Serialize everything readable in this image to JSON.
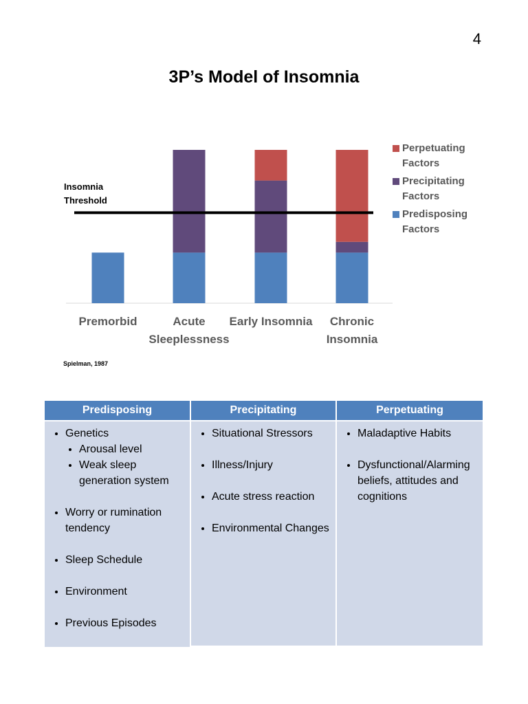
{
  "page_number": "4",
  "chart_data": {
    "type": "bar",
    "stacked": true,
    "title": "3P’s Model of Insomnia",
    "categories": [
      "Premorbid",
      "Acute Sleeplessness",
      "Early Insomnia",
      "Chronic Insomnia"
    ],
    "series": [
      {
        "name": "Predisposing Factors",
        "color": "#4f81bd",
        "values": [
          3.3,
          3.3,
          3.3,
          3.3
        ]
      },
      {
        "name": "Precipitating Factors",
        "color": "#604a7b",
        "values": [
          0,
          6.7,
          4.7,
          0.7
        ]
      },
      {
        "name": "Perpetuating Factors",
        "color": "#c0504d",
        "values": [
          0,
          0,
          2.0,
          6.0
        ]
      }
    ],
    "ylim": [
      0,
      10
    ],
    "threshold": {
      "label": "Insomnia Threshold",
      "value": 5.9
    },
    "legend": "right",
    "source": "Spielman, 1987"
  },
  "table": {
    "columns": [
      {
        "header": "Predisposing",
        "items": [
          {
            "text": "Genetics",
            "subitems": [
              "Arousal level",
              "Weak sleep generation system"
            ]
          },
          {
            "text": "Worry or rumination tendency"
          },
          {
            "text": "Sleep Schedule"
          },
          {
            "text": "Environment"
          },
          {
            "text": "Previous Episodes"
          }
        ]
      },
      {
        "header": "Precipitating",
        "items": [
          {
            "text": "Situational Stressors"
          },
          {
            "text": "Illness/Injury"
          },
          {
            "text": "Acute stress reaction"
          },
          {
            "text": "Environmental Changes"
          }
        ]
      },
      {
        "header": "Perpetuating",
        "items": [
          {
            "text": "Maladaptive Habits"
          },
          {
            "text": "Dysfunctional/Alarming beliefs, attitudes and cognitions"
          }
        ]
      }
    ]
  }
}
